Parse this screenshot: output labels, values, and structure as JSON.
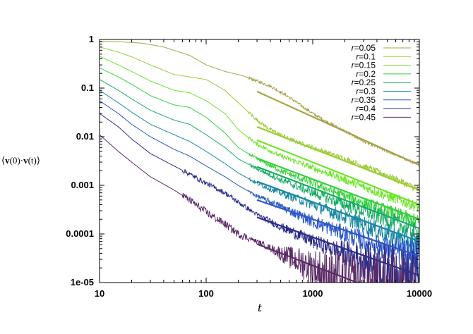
{
  "chart_data": {
    "type": "line",
    "xscale": "log",
    "yscale": "log",
    "xlabel": "t",
    "ylabel_parts": {
      "open": "⟨",
      "v1": "v",
      "arg1": "(0)·",
      "v2": "v",
      "arg2": "(t)",
      "close": "⟩"
    },
    "xlim": [
      10,
      10000
    ],
    "ylim": [
      1e-05,
      1
    ],
    "xticks": [
      "10",
      "100",
      "1000",
      "10000"
    ],
    "yticks": [
      "1e-05",
      "0.0001",
      "0.001",
      "0.01",
      "0.1",
      "1"
    ],
    "legend_position": "top-right",
    "series": [
      {
        "name": "r=0.05",
        "r": "0.05",
        "color": "#a8a24a",
        "knots": [
          [
            10,
            0.92
          ],
          [
            15,
            0.9
          ],
          [
            25,
            0.84
          ],
          [
            40,
            0.7
          ],
          [
            70,
            0.47
          ],
          [
            100,
            0.3
          ],
          [
            150,
            0.22
          ],
          [
            220,
            0.18
          ],
          [
            300,
            0.14
          ],
          [
            400,
            0.11
          ],
          [
            600,
            0.065
          ],
          [
            1000,
            0.03
          ],
          [
            1500,
            0.018
          ],
          [
            2000,
            0.013
          ],
          [
            3000,
            0.008
          ],
          [
            5000,
            0.005
          ],
          [
            10000,
            0.0026
          ]
        ],
        "fit": [
          [
            300,
            0.085
          ],
          [
            10000,
            0.0026
          ]
        ]
      },
      {
        "name": "r=0.1",
        "r": "0.1",
        "color": "#9ccc35",
        "knots": [
          [
            10,
            0.7
          ],
          [
            15,
            0.55
          ],
          [
            20,
            0.44
          ],
          [
            30,
            0.3
          ],
          [
            50,
            0.19
          ],
          [
            70,
            0.17
          ],
          [
            100,
            0.15
          ],
          [
            150,
            0.09
          ],
          [
            200,
            0.05
          ],
          [
            300,
            0.022
          ],
          [
            400,
            0.014
          ],
          [
            600,
            0.009
          ],
          [
            1000,
            0.006
          ],
          [
            2000,
            0.0035
          ],
          [
            5000,
            0.0016
          ],
          [
            10000,
            0.0008
          ]
        ],
        "fit": [
          [
            300,
            0.016
          ],
          [
            10000,
            0.0008
          ]
        ]
      },
      {
        "name": "r=0.15",
        "r": "0.15",
        "color": "#6be625",
        "knots": [
          [
            10,
            0.45
          ],
          [
            15,
            0.3
          ],
          [
            20,
            0.22
          ],
          [
            30,
            0.14
          ],
          [
            50,
            0.09
          ],
          [
            70,
            0.08
          ],
          [
            100,
            0.055
          ],
          [
            150,
            0.03
          ],
          [
            200,
            0.014
          ],
          [
            300,
            0.007
          ],
          [
            500,
            0.004
          ],
          [
            1000,
            0.0023
          ],
          [
            2000,
            0.0013
          ],
          [
            5000,
            0.0006
          ],
          [
            10000,
            0.00035
          ]
        ],
        "fit": [
          [
            300,
            0.0085
          ],
          [
            10000,
            0.0004
          ]
        ]
      },
      {
        "name": "r=0.2",
        "r": "0.2",
        "color": "#33d13a",
        "knots": [
          [
            10,
            0.26
          ],
          [
            15,
            0.17
          ],
          [
            20,
            0.12
          ],
          [
            30,
            0.07
          ],
          [
            50,
            0.045
          ],
          [
            70,
            0.04
          ],
          [
            100,
            0.025
          ],
          [
            150,
            0.012
          ],
          [
            200,
            0.006
          ],
          [
            300,
            0.0035
          ],
          [
            500,
            0.002
          ],
          [
            1000,
            0.0011
          ],
          [
            2000,
            0.0006
          ],
          [
            5000,
            0.0003
          ],
          [
            10000,
            0.00017
          ]
        ],
        "fit": [
          [
            300,
            0.0036
          ],
          [
            10000,
            0.0002
          ]
        ]
      },
      {
        "name": "r=0.25",
        "r": "0.25",
        "color": "#18ad65",
        "knots": [
          [
            10,
            0.15
          ],
          [
            15,
            0.09
          ],
          [
            20,
            0.06
          ],
          [
            30,
            0.035
          ],
          [
            50,
            0.022
          ],
          [
            70,
            0.018
          ],
          [
            100,
            0.011
          ],
          [
            150,
            0.006
          ],
          [
            200,
            0.0035
          ],
          [
            300,
            0.0022
          ],
          [
            500,
            0.0013
          ],
          [
            1000,
            0.0007
          ],
          [
            2000,
            0.0004
          ],
          [
            5000,
            0.0002
          ],
          [
            10000,
            0.0001
          ]
        ],
        "fit": [
          [
            300,
            0.0024
          ],
          [
            10000,
            0.00013
          ]
        ]
      },
      {
        "name": "r=0.3",
        "r": "0.3",
        "color": "#1a88a2",
        "knots": [
          [
            10,
            0.09
          ],
          [
            15,
            0.05
          ],
          [
            20,
            0.032
          ],
          [
            30,
            0.018
          ],
          [
            50,
            0.011
          ],
          [
            70,
            0.008
          ],
          [
            100,
            0.005
          ],
          [
            150,
            0.0028
          ],
          [
            200,
            0.0018
          ],
          [
            300,
            0.0011
          ],
          [
            500,
            0.0007
          ],
          [
            1000,
            0.0004
          ],
          [
            2000,
            0.00022
          ],
          [
            5000,
            0.0001
          ],
          [
            10000,
            6e-05
          ]
        ],
        "fit": [
          [
            300,
            0.0012
          ],
          [
            10000,
            7e-05
          ]
        ]
      },
      {
        "name": "r=0.35",
        "r": "0.35",
        "color": "#2a56c8",
        "knots": [
          [
            10,
            0.055
          ],
          [
            15,
            0.03
          ],
          [
            20,
            0.018
          ],
          [
            30,
            0.01
          ],
          [
            50,
            0.0055
          ],
          [
            70,
            0.004
          ],
          [
            100,
            0.0025
          ],
          [
            150,
            0.0015
          ],
          [
            200,
            0.001
          ],
          [
            300,
            0.0006
          ],
          [
            500,
            0.00037
          ],
          [
            1000,
            0.00018
          ],
          [
            2000,
            0.0001
          ],
          [
            5000,
            5e-05
          ],
          [
            10000,
            3e-05
          ]
        ],
        "fit": [
          [
            300,
            0.0005
          ],
          [
            10000,
            3.5e-05
          ]
        ]
      },
      {
        "name": "r=0.4",
        "r": "0.4",
        "color": "#2d2d8a",
        "knots": [
          [
            10,
            0.03
          ],
          [
            15,
            0.016
          ],
          [
            20,
            0.009
          ],
          [
            30,
            0.0045
          ],
          [
            50,
            0.0025
          ],
          [
            70,
            0.0017
          ],
          [
            100,
            0.0011
          ],
          [
            150,
            0.0007
          ],
          [
            200,
            0.00045
          ],
          [
            300,
            0.00025
          ],
          [
            500,
            0.00014
          ],
          [
            1000,
            7e-05
          ],
          [
            2000,
            4e-05
          ],
          [
            5000,
            2e-05
          ],
          [
            10000,
            1e-05
          ]
        ],
        "fit": [
          [
            300,
            0.00022
          ],
          [
            10000,
            1.4e-05
          ]
        ]
      },
      {
        "name": "r=0.45",
        "r": "0.45",
        "color": "#5a2a66",
        "knots": [
          [
            10,
            0.011
          ],
          [
            15,
            0.005
          ],
          [
            20,
            0.003
          ],
          [
            30,
            0.0015
          ],
          [
            50,
            0.0008
          ],
          [
            70,
            0.0005
          ],
          [
            100,
            0.00028
          ],
          [
            150,
            0.00016
          ],
          [
            200,
            0.0001
          ],
          [
            300,
            7e-05
          ],
          [
            500,
            4e-05
          ],
          [
            1000,
            2e-05
          ],
          [
            2000,
            1e-05
          ],
          [
            5000,
            6e-06
          ],
          [
            10000,
            4e-06
          ]
        ],
        "fit": [
          [
            300,
            6.2e-05
          ],
          [
            2600,
            1e-05
          ]
        ]
      }
    ]
  }
}
